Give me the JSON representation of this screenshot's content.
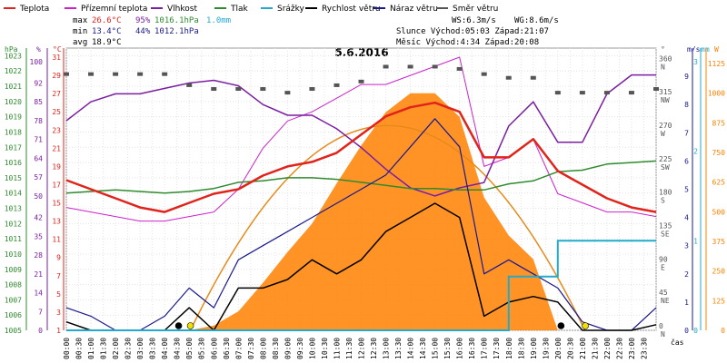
{
  "title": "5.6.2016",
  "legend": [
    {
      "label": "Teplota",
      "color": "#e0241b"
    },
    {
      "label": "Přízemní teplota",
      "color": "#cc22cc"
    },
    {
      "label": "Vlhkost",
      "color": "#7b1fa2"
    },
    {
      "label": "Tlak",
      "color": "#2e8b2e"
    },
    {
      "label": "Srážky",
      "color": "#22aacc"
    },
    {
      "label": "Rychlost větru",
      "color": "#000000"
    },
    {
      "label": "Náraz větru",
      "color": "#1a1a8c"
    },
    {
      "label": "Směr větru",
      "color": "#555555"
    }
  ],
  "stats": {
    "max_label": "max",
    "max_temp": "26.6°C",
    "max_hum": "95%",
    "max_press": "1016.1hPa",
    "max_rain": "1.0mm",
    "min_label": "min",
    "min_temp": "13.4°C",
    "min_hum": "44%",
    "min_press": "1012.1hPa",
    "avg_label": "avg",
    "avg_temp": "18.9°C",
    "ws": "WS:6.3m/s",
    "wg": "WG:8.6m/s",
    "sun": "Slunce Východ:05:03   Západ:21:07",
    "moon": "Měsíc  Východ:4:34    Západ:20:08"
  },
  "axes": {
    "hpa_label": "hPa",
    "pct_label": "%",
    "c_label": "°C",
    "deg_label": "°",
    "ms_label": "m/s",
    "mm_label": "mm",
    "w_label": "W",
    "time_label": "čas",
    "hpa_ticks": [
      "1023",
      "1022",
      "1021",
      "1020",
      "1019",
      "1018",
      "1017",
      "1016",
      "1015",
      "1014",
      "1013",
      "1012",
      "1011",
      "1010",
      "1009",
      "1008",
      "1007",
      "1006",
      "1005"
    ],
    "pct_ticks": [
      "100",
      "92",
      "85",
      "78",
      "71",
      "64",
      "57",
      "50",
      "42",
      "35",
      "28",
      "21",
      "14",
      "7",
      "0"
    ],
    "c_ticks": [
      "31",
      "29",
      "27",
      "25",
      "23",
      "21",
      "19",
      "17",
      "15",
      "13",
      "11",
      "9",
      "7",
      "5",
      "3",
      "1"
    ],
    "deg_ticks": [
      "360",
      "315",
      "270",
      "225",
      "180",
      "135",
      "90",
      "45",
      "0"
    ],
    "deg_letters": [
      "N",
      "NW",
      "W",
      "SW",
      "S",
      "SE",
      "E",
      "NE",
      "N"
    ],
    "ms_ticks": [
      "9",
      "8",
      "7",
      "6",
      "5",
      "4",
      "3",
      "2",
      "1",
      "0"
    ],
    "mm_ticks": [
      "3",
      "2",
      "1",
      "0"
    ],
    "w_ticks": [
      "1125",
      "1000",
      "875",
      "750",
      "625",
      "500",
      "375",
      "250",
      "125",
      "0"
    ],
    "time_ticks": [
      "00:00",
      "00:30",
      "01:00",
      "01:30",
      "02:00",
      "02:30",
      "03:00",
      "03:30",
      "04:00",
      "04:30",
      "05:00",
      "05:30",
      "06:00",
      "06:30",
      "07:00",
      "07:30",
      "08:00",
      "08:30",
      "09:00",
      "09:30",
      "10:00",
      "10:30",
      "11:00",
      "11:30",
      "12:00",
      "12:30",
      "13:00",
      "13:30",
      "14:00",
      "14:30",
      "15:00",
      "15:30",
      "16:00",
      "16:30",
      "17:00",
      "17:30",
      "18:00",
      "18:30",
      "19:00",
      "19:30",
      "20:00",
      "20:30",
      "21:00",
      "21:30",
      "22:00",
      "22:30",
      "23:00",
      "23:30"
    ]
  },
  "chart_data": {
    "type": "line",
    "x_hours": [
      0,
      1,
      2,
      3,
      4,
      5,
      6,
      7,
      8,
      9,
      10,
      11,
      12,
      13,
      14,
      15,
      16,
      17,
      18,
      19,
      20,
      21,
      22,
      23,
      24
    ],
    "series": [
      {
        "name": "Teplota",
        "unit": "°C",
        "color": "#e0241b",
        "values": [
          17.5,
          16.5,
          15.5,
          14.5,
          14.0,
          15.0,
          16.0,
          16.5,
          18.0,
          19.0,
          19.5,
          20.5,
          22.5,
          24.5,
          25.5,
          26.0,
          25.0,
          20.0,
          20.0,
          22.0,
          18.5,
          17.0,
          15.5,
          14.5,
          14.0
        ]
      },
      {
        "name": "Přízemní teplota",
        "unit": "°C",
        "color": "#cc22cc",
        "values": [
          14.5,
          14.0,
          13.5,
          13.0,
          13.0,
          13.5,
          14.0,
          16.5,
          21.0,
          24.0,
          25.0,
          26.5,
          28.0,
          28.0,
          29.0,
          30.0,
          31.0,
          19.0,
          20.0,
          22.0,
          16.0,
          15.0,
          14.0,
          14.0,
          13.5
        ]
      },
      {
        "name": "Vlhkost",
        "unit": "%",
        "color": "#7b1fa2",
        "values": [
          78,
          85,
          88,
          88,
          90,
          92,
          93,
          91,
          84,
          80,
          80,
          75,
          68,
          60,
          53,
          50,
          53,
          55,
          76,
          85,
          70,
          70,
          88,
          95,
          95
        ]
      },
      {
        "name": "Tlak",
        "unit": "hPa",
        "color": "#2e8b2e",
        "values": [
          1014.0,
          1014.1,
          1014.2,
          1014.1,
          1014.0,
          1014.1,
          1014.3,
          1014.7,
          1014.8,
          1015.0,
          1015.0,
          1014.9,
          1014.7,
          1014.5,
          1014.3,
          1014.3,
          1014.2,
          1014.2,
          1014.6,
          1014.8,
          1015.4,
          1015.5,
          1015.9,
          1016.0,
          1016.1
        ]
      },
      {
        "name": "Srážky",
        "unit": "mm",
        "color": "#22aacc",
        "values": [
          0,
          0,
          0,
          0,
          0,
          0,
          0,
          0,
          0,
          0,
          0,
          0,
          0,
          0,
          0,
          0,
          0,
          0,
          0.6,
          0.6,
          1.0,
          1.0,
          1.0,
          1.0,
          1.0
        ]
      },
      {
        "name": "Rychlost větru",
        "unit": "m/s",
        "color": "#000000",
        "values": [
          0.3,
          0,
          0,
          0,
          0,
          0.8,
          0,
          1.5,
          1.5,
          1.8,
          2.5,
          2.0,
          2.5,
          3.5,
          4.0,
          4.5,
          4.0,
          0.5,
          1.0,
          1.2,
          1.0,
          0,
          0,
          0,
          0.2
        ]
      },
      {
        "name": "Náraz větru",
        "unit": "m/s",
        "color": "#1a1a8c",
        "values": [
          0.8,
          0.5,
          0,
          0,
          0.5,
          1.5,
          0.8,
          2.5,
          3.0,
          3.5,
          4.0,
          4.5,
          5.0,
          5.5,
          6.5,
          7.5,
          6.5,
          2.0,
          2.5,
          2.0,
          1.5,
          0.3,
          0,
          0,
          0.8
        ]
      },
      {
        "name": "Směr větru",
        "unit": "°",
        "color": "#555555",
        "values": [
          345,
          345,
          345,
          345,
          345,
          330,
          325,
          325,
          325,
          320,
          325,
          330,
          335,
          355,
          355,
          355,
          352,
          345,
          340,
          340,
          320,
          320,
          320,
          320,
          325
        ]
      },
      {
        "name": "Sluneční záření",
        "unit": "W",
        "color": "#ff8000",
        "values": [
          0,
          0,
          0,
          0,
          0,
          0,
          20,
          80,
          200,
          330,
          450,
          620,
          780,
          920,
          1000,
          1000,
          900,
          560,
          400,
          300,
          0,
          0,
          0,
          0,
          0
        ]
      }
    ]
  }
}
